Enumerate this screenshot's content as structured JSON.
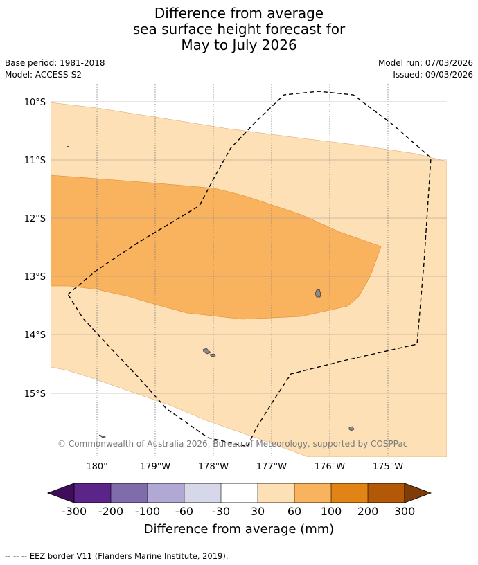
{
  "title": {
    "line1": "Difference from average",
    "line2": "sea surface height forecast for",
    "line3": "May to July 2026"
  },
  "meta_left": {
    "base_period": "Base period: 1981-2018",
    "model": "Model: ACCESS-S2"
  },
  "meta_right": {
    "model_run": "Model run: 07/03/2026",
    "issued": "Issued: 09/03/2026"
  },
  "map": {
    "latitude_labels": [
      "10°S",
      "11°S",
      "12°S",
      "13°S",
      "14°S",
      "15°S"
    ],
    "longitude_labels": [
      "180°",
      "179°W",
      "178°W",
      "177°W",
      "176°W",
      "175°W"
    ],
    "copyright": "© Commonwealth of Australia 2026, Bureau of Meteorology, supported by COSPPac",
    "colors": {
      "band_30_60": "#fde0b5",
      "band_60_100": "#f9b35e",
      "land": "#8a8a8a",
      "grid": "#999999",
      "eez": "#000000"
    }
  },
  "colorbar": {
    "tick_labels": [
      "-300",
      "-200",
      "-100",
      "-60",
      "-30",
      "30",
      "60",
      "100",
      "200",
      "300"
    ],
    "colors": [
      "#3f0d5c",
      "#5a2489",
      "#7f6dab",
      "#b1a9d3",
      "#d7d7ea",
      "#ffffff",
      "#fde0b5",
      "#f9b35e",
      "#e18315",
      "#b35806",
      "#7f3b08"
    ],
    "label": "Difference from average (mm)"
  },
  "footer": {
    "legend_text": "--  --  -- EEZ border V11 (Flanders Marine Institute, 2019)."
  }
}
